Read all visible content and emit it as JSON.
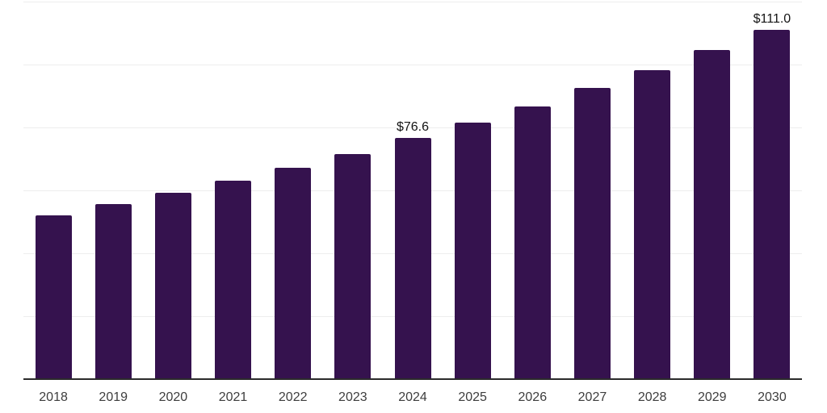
{
  "chart_data": {
    "type": "bar",
    "title": "",
    "xlabel": "",
    "ylabel": "",
    "categories": [
      "2018",
      "2019",
      "2020",
      "2021",
      "2022",
      "2023",
      "2024",
      "2025",
      "2026",
      "2027",
      "2028",
      "2029",
      "2030"
    ],
    "values": [
      52.1,
      55.7,
      59.3,
      63.0,
      67.1,
      71.6,
      76.6,
      81.5,
      86.7,
      92.5,
      98.3,
      104.5,
      111.0
    ],
    "point_labels": [
      "",
      "",
      "",
      "",
      "",
      "",
      "$76.6",
      "",
      "",
      "",
      "",
      "",
      "$111.0"
    ],
    "ylim": [
      0,
      120
    ],
    "grid_step": 20,
    "grid": "on",
    "legend": "none",
    "colors": {
      "bar": "#35124E",
      "gridline": "#EDEDED",
      "axis_line": "#2B2B2B",
      "tick_label": "#3D3D3D",
      "data_label": "#141414",
      "background": "#FFFFFF"
    }
  }
}
